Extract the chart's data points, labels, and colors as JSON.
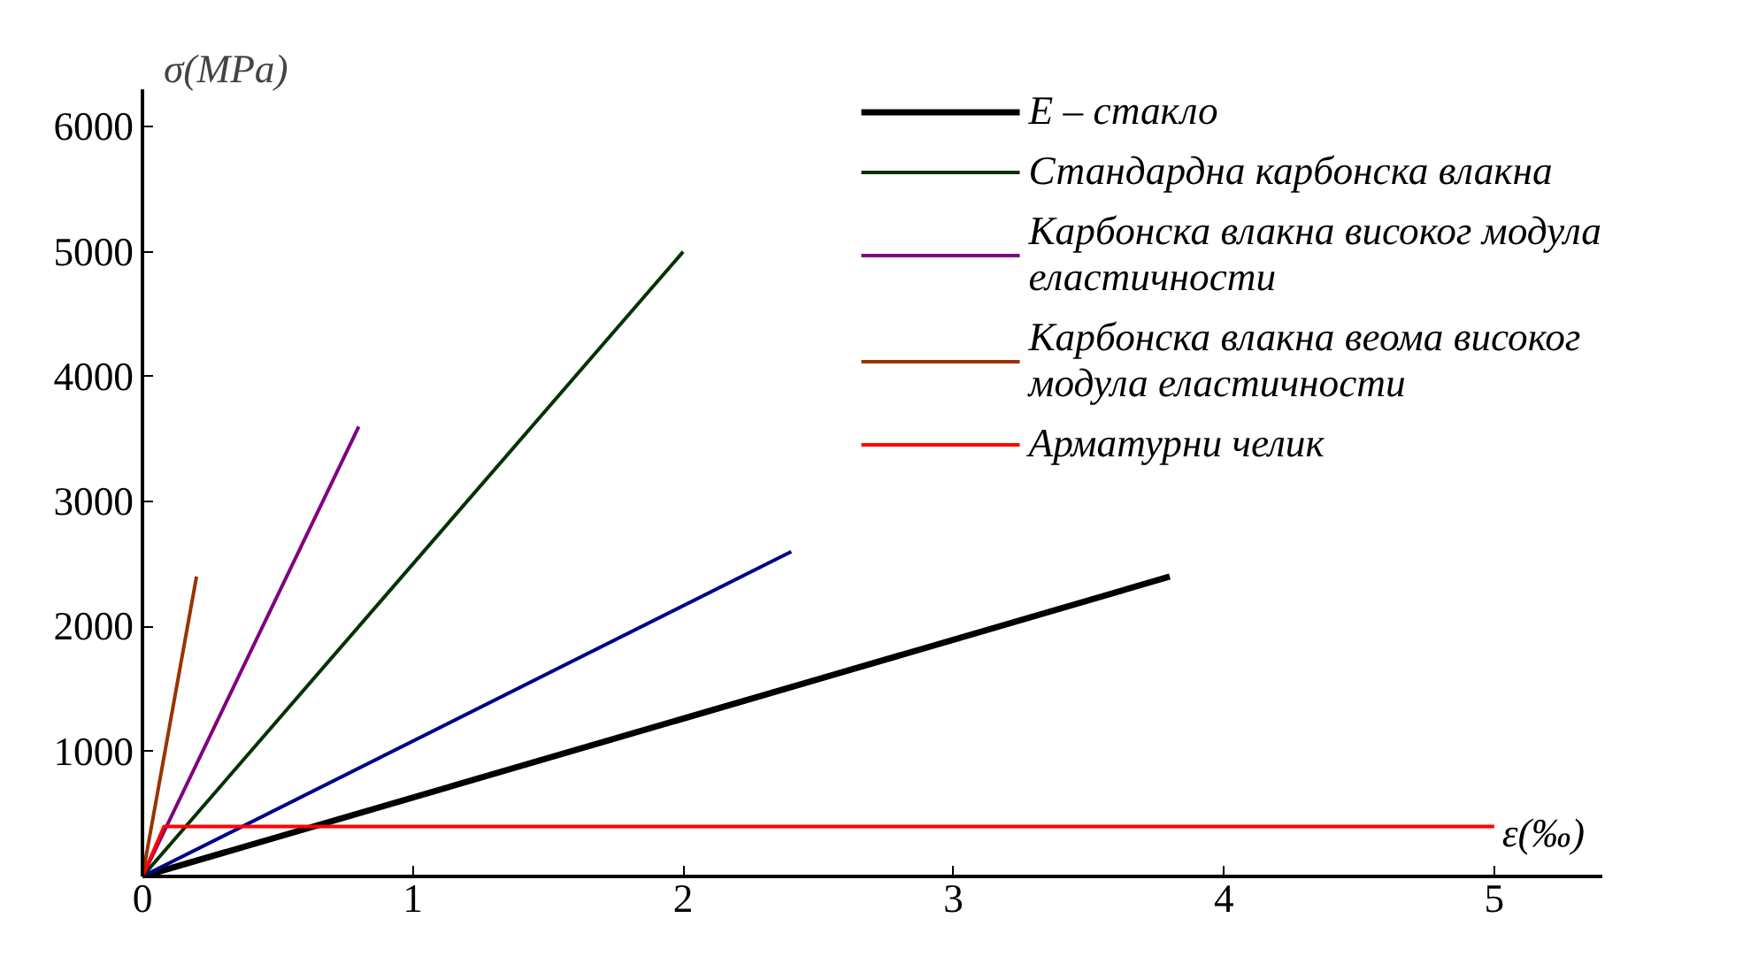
{
  "chart_data": {
    "type": "line",
    "xlabel": "ε(‰)",
    "ylabel": "σ(MPa)",
    "xlim": [
      0,
      5.4
    ],
    "ylim": [
      0,
      6300
    ],
    "xticks": [
      0,
      1,
      2,
      3,
      4,
      5
    ],
    "yticks": [
      {
        "value": 0,
        "label": null
      },
      1000,
      2000,
      3000,
      4000,
      5000,
      6000
    ],
    "grid": false,
    "legend": "top right",
    "marker": "none",
    "line_style": "solid",
    "series": [
      {
        "name": "E – стакло",
        "color": "#000000",
        "x": [
          0,
          3.8
        ],
        "values": [
          0,
          2400
        ]
      },
      {
        "color": "#00008b",
        "x": [
          0,
          2.4
        ],
        "values": [
          0,
          2600
        ]
      },
      {
        "name": "Стандардна карбонска влакна",
        "color": "#003300",
        "x": [
          0,
          2
        ],
        "values": [
          0,
          5000
        ]
      },
      {
        "name": "Карбонска влакна високог модула\nеластичности",
        "color": "#800080",
        "x": [
          0,
          0.8
        ],
        "values": [
          0,
          3600
        ]
      },
      {
        "name": "Карбонска влакна веома високог\nмодула еластичности",
        "color": "#993300",
        "x": [
          0,
          0.2
        ],
        "values": [
          0,
          2400
        ]
      },
      {
        "name": "Арматурни челик",
        "color": "#ff0000",
        "x": [
          0,
          0.08,
          5
        ],
        "values": [
          0,
          400,
          400
        ]
      }
    ]
  }
}
